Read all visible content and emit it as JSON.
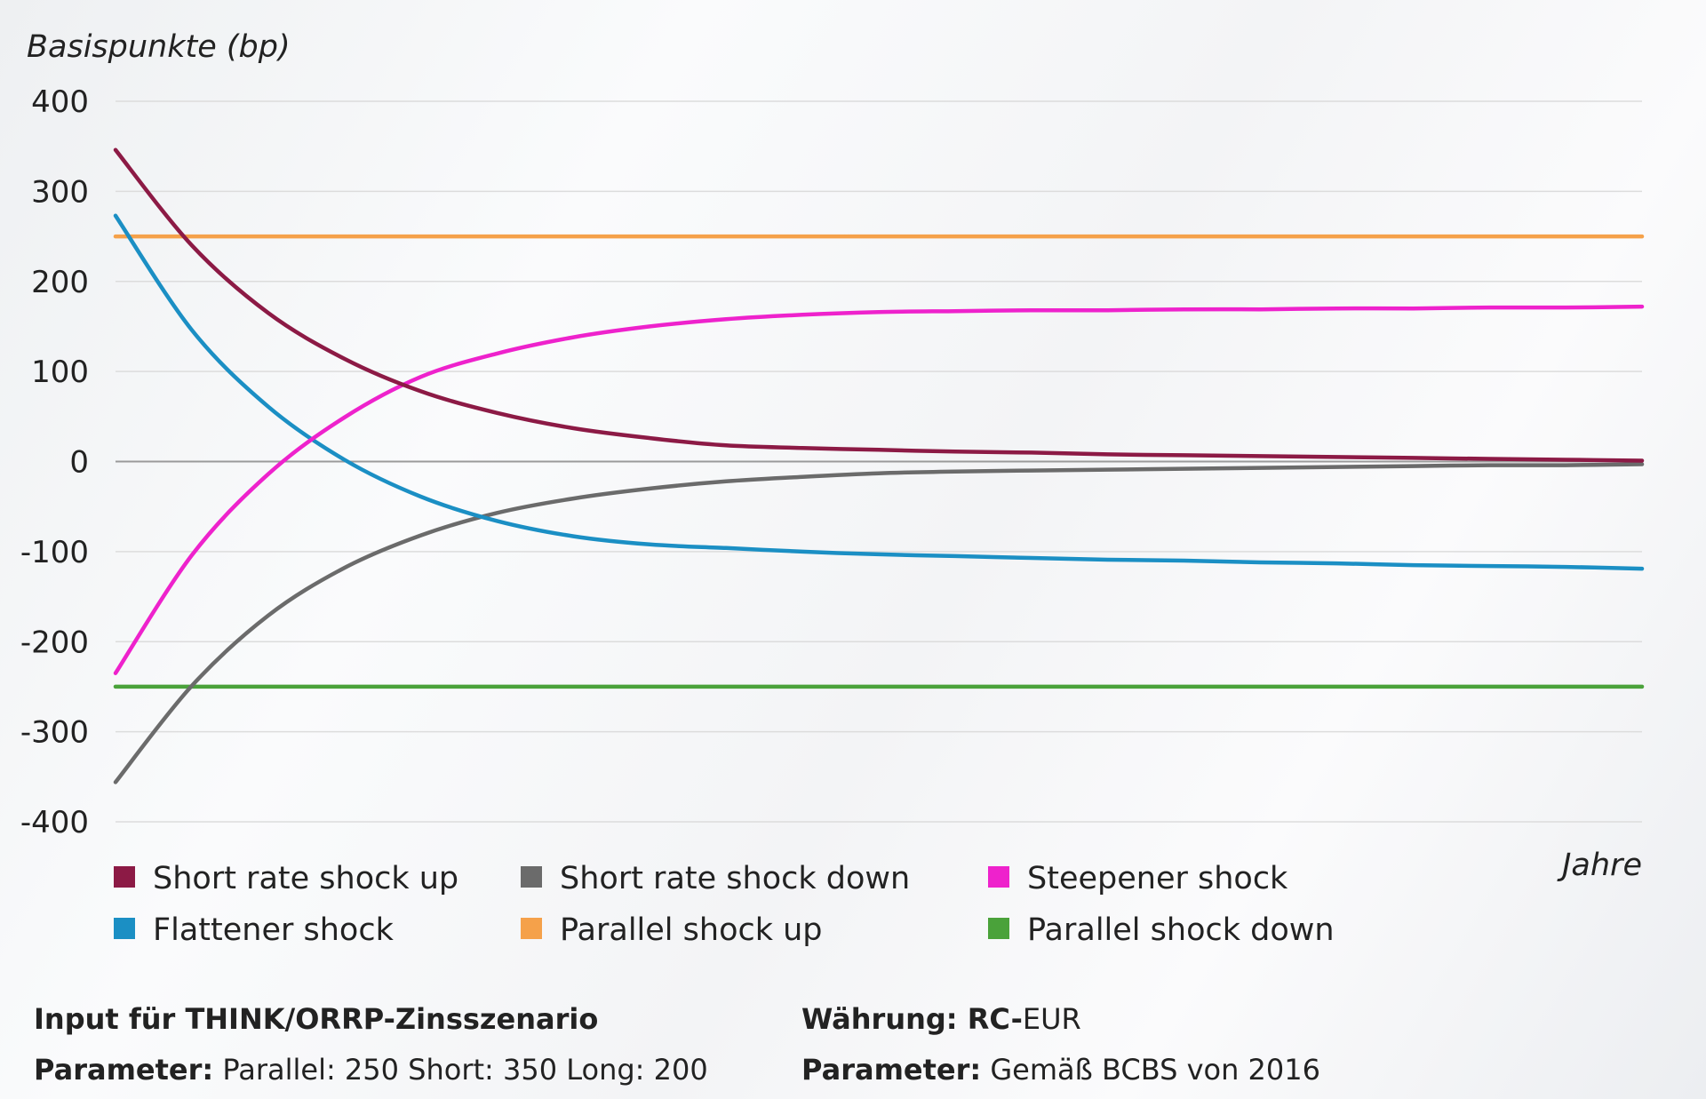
{
  "chart_data": {
    "type": "line",
    "ylabel": "Basispunkte (bp)",
    "xlabel": "Jahre",
    "ylim": [
      -400,
      400
    ],
    "yticks": [
      400,
      300,
      200,
      100,
      0,
      -100,
      -200,
      -300,
      -400
    ],
    "ytick_labels": [
      "400",
      "300",
      "200",
      "100",
      "0",
      "-100",
      "-200",
      "-300",
      "-400"
    ],
    "grid": true,
    "legend_position": "bottom",
    "x": [
      0,
      1,
      2,
      3,
      4,
      5,
      6,
      7,
      8,
      9,
      10,
      11,
      12,
      13,
      14,
      15,
      16,
      17,
      18,
      19,
      20
    ],
    "series": [
      {
        "name": "Short rate shock up",
        "color": "#8c1a45",
        "values": [
          346,
          240,
          165,
          114,
          78,
          54,
          37,
          26,
          18,
          15,
          13,
          11,
          10,
          8,
          7,
          6,
          5,
          4,
          3,
          2,
          1
        ]
      },
      {
        "name": "Short rate shock down",
        "color": "#6b6b6b",
        "values": [
          -356,
          -249,
          -171,
          -118,
          -82,
          -57,
          -41,
          -30,
          -22,
          -17,
          -13,
          -11,
          -10,
          -9,
          -8,
          -7,
          -6,
          -5,
          -4,
          -4,
          -3
        ]
      },
      {
        "name": "Steepener shock",
        "color": "#ee22cc",
        "values": [
          -235,
          -104,
          -14,
          49,
          94,
          120,
          138,
          150,
          158,
          163,
          166,
          167,
          168,
          168,
          169,
          169,
          170,
          170,
          171,
          171,
          172
        ]
      },
      {
        "name": "Flattener shock",
        "color": "#1b8fc4",
        "values": [
          273,
          146,
          61,
          2,
          -39,
          -66,
          -83,
          -92,
          -96,
          -100,
          -103,
          -105,
          -107,
          -109,
          -110,
          -112,
          -113,
          -115,
          -116,
          -117,
          -119
        ]
      },
      {
        "name": "Parallel shock up",
        "color": "#f5a14a",
        "values": [
          250,
          250,
          250,
          250,
          250,
          250,
          250,
          250,
          250,
          250,
          250,
          250,
          250,
          250,
          250,
          250,
          250,
          250,
          250,
          250,
          250
        ]
      },
      {
        "name": "Parallel shock down",
        "color": "#4aa23a",
        "values": [
          -250,
          -250,
          -250,
          -250,
          -250,
          -250,
          -250,
          -250,
          -250,
          -250,
          -250,
          -250,
          -250,
          -250,
          -250,
          -250,
          -250,
          -250,
          -250,
          -250,
          -250
        ]
      }
    ]
  },
  "footer": {
    "left_title": "Input für THINK/ORRP-Zinsszenario",
    "left_param_label": "Parameter:",
    "left_param_value": " Parallel: 250  Short: 350  Long: 200",
    "right_currency_label": "Währung: RC-",
    "right_currency_value": "EUR",
    "right_param_label": "Parameter:",
    "right_param_value": " Gemäß BCBS von 2016"
  }
}
